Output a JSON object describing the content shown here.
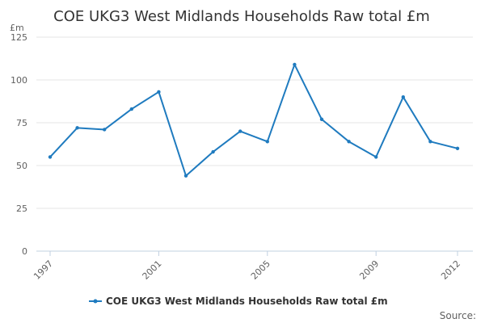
{
  "chart_data": {
    "type": "line",
    "title": "COE UKG3 West Midlands Households Raw total £m",
    "y_unit": "£m",
    "xlabel": "",
    "ylabel": "",
    "x": [
      1997,
      1998,
      1999,
      2000,
      2001,
      2002,
      2003,
      2004,
      2005,
      2006,
      2007,
      2008,
      2009,
      2010,
      2011,
      2012
    ],
    "x_tick_labels": [
      "1997",
      "2001",
      "2005",
      "2009",
      "2012"
    ],
    "x_tick_values": [
      1997,
      2001,
      2005,
      2009,
      2012
    ],
    "y_ticks": [
      0,
      25,
      50,
      75,
      100,
      125
    ],
    "ylim": [
      0,
      125
    ],
    "grid": true,
    "legend_position": "bottom",
    "series": [
      {
        "name": "COE UKG3 West Midlands Households Raw total £m",
        "color": "#1f7bbf",
        "values": [
          55,
          72,
          71,
          83,
          93,
          44,
          58,
          70,
          64,
          109,
          77,
          64,
          55,
          90,
          64,
          60
        ]
      }
    ]
  },
  "source_label": "Source:",
  "colors": {
    "series": "#1f7bbf",
    "grid": "#e6e6e6",
    "axis": "#c0d0e0",
    "text": "#333333",
    "muted": "#606060"
  }
}
